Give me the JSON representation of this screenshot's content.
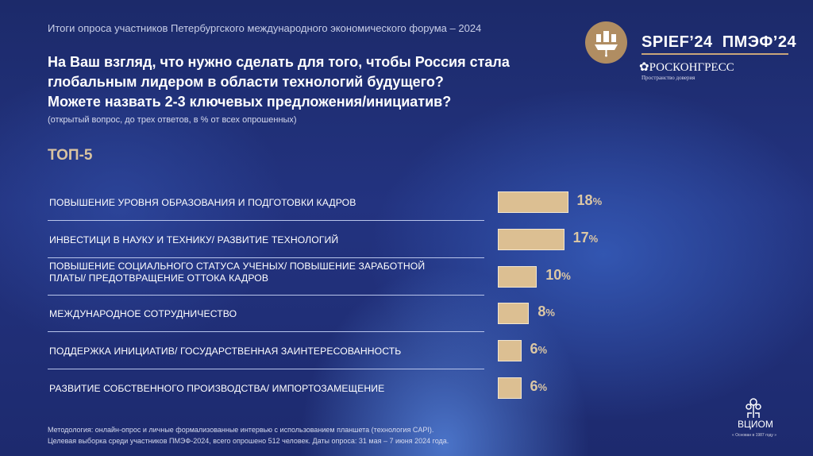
{
  "header": {
    "subtitle": "Итоги опроса участников Петербургского международного экономического форума – 2024",
    "question_lines": [
      "На Ваш взгляд, что нужно сделать для того, чтобы Россия стала",
      "глобальным лидером в области технологий будущего?",
      "Можете назвать 2-3 ключевых предложения/инициатив?"
    ],
    "note": "(открытый вопрос, до трех ответов, в % от всех опрошенных)",
    "section": "ТОП-5"
  },
  "logos": {
    "spief": "SPIEF’24  ПМЭФ’24",
    "roscongress": "РОСКОНГРЕСС",
    "roscongress_tagline": "Пространство доверия",
    "vciom": "ВЦИОМ",
    "vciom_tagline": "« Основан в 1987 году »"
  },
  "footer": {
    "lines": [
      "Методология: онлайн-опрос и личные формализованные интервью с использованием планшета (технология CAPI).",
      "Целевая выборка среди участников ПМЭФ-2024, всего опрошено 512 человек. Даты опроса: 31 мая – 7 июня 2024 года."
    ]
  },
  "colors": {
    "bar": "#dcbf92",
    "value_label": "#dcc7a4",
    "background": "#233380"
  },
  "chart_data": {
    "type": "bar",
    "orientation": "horizontal",
    "unit": "%",
    "categories": [
      "ПОВЫШЕНИЕ УРОВНЯ ОБРАЗОВАНИЯ И ПОДГОТОВКИ КАДРОВ",
      "ИНВЕСТИЦИ В НАУКУ И ТЕХНИКУ/ РАЗВИТИЕ ТЕХНОЛОГИЙ",
      "ПОВЫШЕНИЕ СОЦИАЛЬНОГО СТАТУСА УЧЕНЫХ/ ПОВЫШЕНИЕ ЗАРАБОТНОЙ ПЛАТЫ/  ПРЕДОТВРАЩЕНИЕ ОТТОКА КАДРОВ",
      "МЕЖДУНАРОДНОЕ СОТРУДНИЧЕСТВО",
      "ПОДДЕРЖКА ИНИЦИАТИВ/ ГОСУДАРСТВЕННАЯ ЗАИНТЕРЕСОВАННОСТЬ",
      "РАЗВИТИЕ СОБСТВЕННОГО ПРОИЗВОДСТВА/ ИМПОРТОЗАМЕЩЕНИЕ"
    ],
    "values": [
      18,
      17,
      10,
      8,
      6,
      6
    ],
    "grid": false
  }
}
